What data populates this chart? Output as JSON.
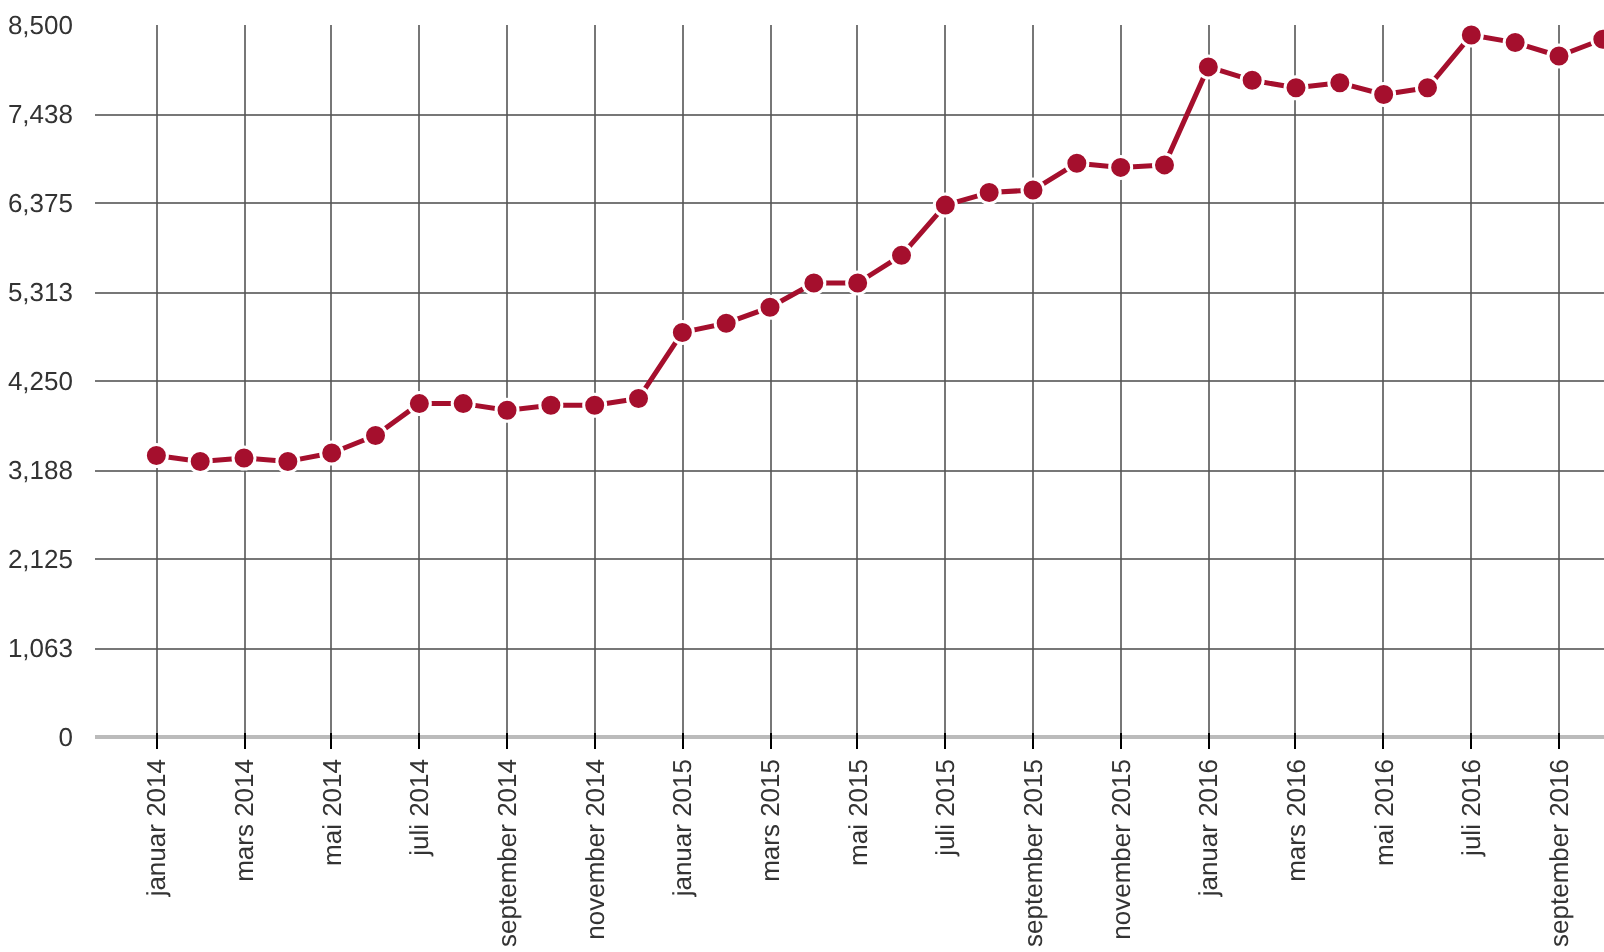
{
  "chart_data": {
    "type": "line",
    "categories": [
      "januar 2014",
      null,
      "mars 2014",
      null,
      "mai 2014",
      null,
      "juli 2014",
      null,
      "september 2014",
      null,
      "november 2014",
      null,
      "januar 2015",
      null,
      "mars 2015",
      null,
      "mai 2015",
      null,
      "juli 2015",
      null,
      "september 2015",
      null,
      "november 2015",
      null,
      "januar 2016",
      null,
      "mars 2016",
      null,
      "mai 2016",
      null,
      "juli 2016",
      null,
      "september 2016",
      null
    ],
    "series": [
      {
        "color": "#a50f2d",
        "values": [
          3360,
          3290,
          3330,
          3290,
          3390,
          3600,
          3980,
          3980,
          3900,
          3960,
          3960,
          4040,
          4830,
          4940,
          5130,
          5420,
          5420,
          5750,
          6350,
          6500,
          6530,
          6850,
          6800,
          6830,
          8000,
          7840,
          7750,
          7810,
          7670,
          7750,
          8380,
          8290,
          8130,
          8330
        ]
      }
    ],
    "ylim": [
      0,
      8500
    ],
    "yticks": [
      0,
      {
        "value": 1062.5,
        "label": "1,063"
      },
      {
        "value": 2125,
        "label": "2,125"
      },
      {
        "value": 3187.5,
        "label": "3,188"
      },
      {
        "value": 4250,
        "label": "4,250"
      },
      {
        "value": 5312.5,
        "label": "5,313"
      },
      {
        "value": 6375,
        "label": "6,375"
      },
      {
        "value": 7437.5,
        "label": "7,438"
      },
      {
        "value": 8500,
        "label": "8,500"
      }
    ],
    "grid": true,
    "marker": "circle",
    "line_style": "solid"
  }
}
